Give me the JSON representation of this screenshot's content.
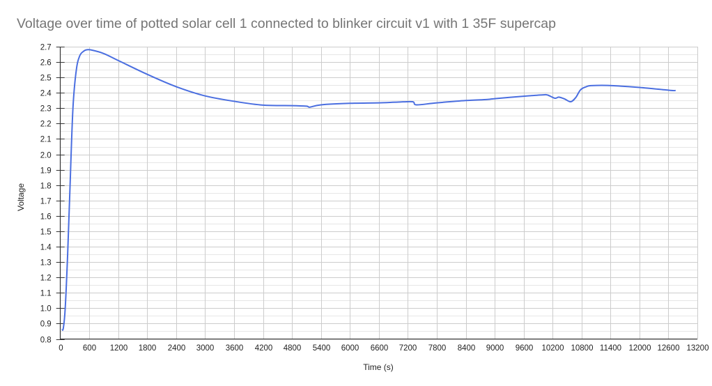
{
  "chart_data": {
    "type": "line",
    "title": "Voltage over time of potted solar cell 1 connected to blinker circuit v1 with 1 35F supercap",
    "xlabel": "Time (s)",
    "ylabel": "Voltage",
    "xlim": [
      0,
      13200
    ],
    "ylim": [
      0.8,
      2.7
    ],
    "x_ticks": [
      0,
      600,
      1200,
      1800,
      2400,
      3000,
      3600,
      4200,
      4800,
      5400,
      6000,
      6600,
      7200,
      7800,
      8400,
      9000,
      9600,
      10200,
      10800,
      11400,
      12000,
      12600,
      13200
    ],
    "x_tick_labels": [
      "0",
      "600",
      "1200",
      "1800",
      "2400",
      "3000",
      "3600",
      "4200",
      "4800",
      "5400",
      "6000",
      "6600",
      "7200",
      "7800",
      "8400",
      "9000",
      "9600",
      "10200",
      "10800",
      "11400",
      "12000",
      "12600",
      "13200"
    ],
    "y_ticks": [
      0.8,
      0.9,
      1.0,
      1.1,
      1.2,
      1.3,
      1.4,
      1.5,
      1.6,
      1.7,
      1.8,
      1.9,
      2.0,
      2.1,
      2.2,
      2.3,
      2.4,
      2.5,
      2.6,
      2.7
    ],
    "y_tick_labels": [
      "0.8",
      "0.9",
      "1.0",
      "1.1",
      "1.2",
      "1.3",
      "1.4",
      "1.5",
      "1.6",
      "1.7",
      "1.8",
      "1.9",
      "2.0",
      "2.1",
      "2.2",
      "2.3",
      "2.4",
      "2.5",
      "2.6",
      "2.7"
    ],
    "grid": true,
    "legend": "none",
    "series": [
      {
        "name": "Voltage",
        "color": "#4a6ee0",
        "x": [
          30,
          60,
          100,
          150,
          200,
          260,
          330,
          400,
          480,
          550,
          650,
          900,
          1200,
          1800,
          2400,
          3000,
          3600,
          4200,
          4800,
          5100,
          5170,
          5400,
          6000,
          6600,
          7000,
          7300,
          7380,
          7800,
          8400,
          8850,
          9000,
          9600,
          10000,
          10100,
          10250,
          10330,
          10450,
          10575,
          10680,
          10780,
          10900,
          11000,
          11340,
          12000,
          12640,
          12750
        ],
        "y": [
          0.86,
          0.87,
          1.0,
          1.35,
          1.8,
          2.3,
          2.55,
          2.64,
          2.67,
          2.68,
          2.678,
          2.655,
          2.61,
          2.52,
          2.44,
          2.38,
          2.345,
          2.32,
          2.317,
          2.313,
          2.307,
          2.322,
          2.332,
          2.335,
          2.34,
          2.342,
          2.322,
          2.335,
          2.35,
          2.357,
          2.362,
          2.378,
          2.387,
          2.385,
          2.365,
          2.372,
          2.36,
          2.342,
          2.37,
          2.42,
          2.44,
          2.447,
          2.448,
          2.435,
          2.416,
          2.415
        ]
      }
    ]
  }
}
